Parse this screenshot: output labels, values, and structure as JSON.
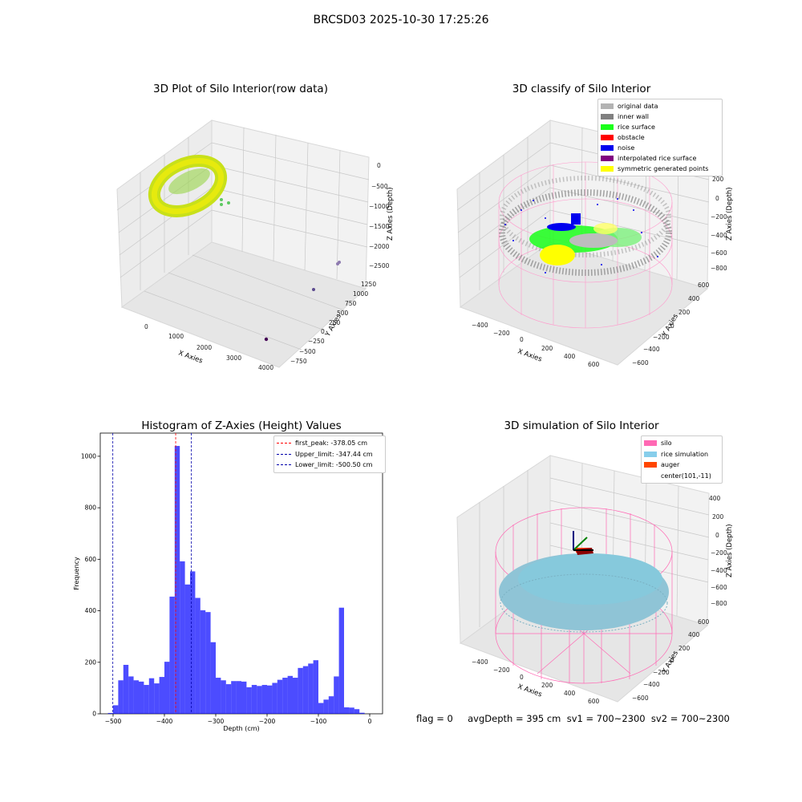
{
  "figure": {
    "title": "BRCSD03 2025-10-30 17:25:26"
  },
  "chart_data": [
    {
      "type": "scatter",
      "title": "3D Plot of Silo Interior(row data)",
      "xlabel": "X Axies",
      "ylabel": "Y Axies",
      "zlabel": "Z Axies (Depth)",
      "x_ticks": [
        "0",
        "1000",
        "2000",
        "3000",
        "4000"
      ],
      "y_ticks": [
        "1250",
        "1000",
        "750",
        "500",
        "250",
        "0",
        "−250",
        "−500",
        "−750"
      ],
      "z_ticks": [
        "0",
        "−500",
        "−1000",
        "−1500",
        "−2000",
        "−2500"
      ],
      "outliers": [
        {
          "x": 4000,
          "y": -700,
          "z": -2500,
          "color": "#440154"
        },
        {
          "x": 2800,
          "y": 800,
          "z": -2500,
          "color": "#8e7bb0"
        },
        {
          "x": 1000,
          "y": 250,
          "z": -300,
          "color": "#5ec962"
        }
      ]
    },
    {
      "type": "scatter",
      "title": "3D classify of Silo Interior",
      "xlabel": "X Axies",
      "ylabel": "Y Axies",
      "zlabel": "Z Axies (Depth)",
      "x_ticks": [
        "−400",
        "−200",
        "0",
        "200",
        "400",
        "600"
      ],
      "y_ticks": [
        "600",
        "400",
        "200",
        "0",
        "−200",
        "−400",
        "−600"
      ],
      "z_ticks": [
        "200",
        "0",
        "−200",
        "−400",
        "−600",
        "−800"
      ],
      "legend": [
        {
          "label": "original data",
          "color": "#b3b3b3"
        },
        {
          "label": "inner wall",
          "color": "#808080"
        },
        {
          "label": "rice surface",
          "color": "#1aff1a"
        },
        {
          "label": "obstacle",
          "color": "#ff0000"
        },
        {
          "label": "noise",
          "color": "#0000ee"
        },
        {
          "label": "interpolated rice surface",
          "color": "#800080"
        },
        {
          "label": "symmetric generated points",
          "color": "#ffff00"
        }
      ],
      "legend_position": "upper right"
    },
    {
      "type": "bar",
      "title": "Histogram of Z-Axies (Height) Values",
      "xlabel": "Depth (cm)",
      "ylabel": "Frequency",
      "xlim": [
        -525,
        25
      ],
      "ylim": [
        0,
        1090
      ],
      "x_ticks": [
        -500,
        -400,
        -300,
        -200,
        -100,
        0
      ],
      "x_tick_labels": [
        "−500",
        "−400",
        "−300",
        "−200",
        "−100",
        "0"
      ],
      "y_ticks": [
        0,
        200,
        400,
        600,
        800,
        1000
      ],
      "bin_width": 10,
      "bin_starts": [
        -510,
        -500,
        -490,
        -480,
        -470,
        -460,
        -450,
        -440,
        -430,
        -420,
        -410,
        -400,
        -390,
        -380,
        -370,
        -360,
        -350,
        -340,
        -330,
        -320,
        -310,
        -300,
        -290,
        -280,
        -270,
        -260,
        -250,
        -240,
        -230,
        -220,
        -210,
        -200,
        -190,
        -180,
        -170,
        -160,
        -150,
        -140,
        -130,
        -120,
        -110,
        -100,
        -90,
        -80,
        -70,
        -60,
        -50,
        -40,
        -30,
        -20,
        -10
      ],
      "values": [
        3,
        33,
        130,
        190,
        145,
        130,
        125,
        112,
        138,
        118,
        143,
        202,
        455,
        1040,
        592,
        502,
        553,
        450,
        402,
        395,
        278,
        140,
        130,
        115,
        127,
        127,
        125,
        103,
        112,
        108,
        112,
        110,
        120,
        132,
        140,
        147,
        140,
        178,
        185,
        195,
        208,
        42,
        55,
        68,
        145,
        412,
        25,
        24,
        18,
        4,
        0
      ],
      "bar_color": "#0000ff",
      "bar_opacity": 0.7,
      "vlines": [
        {
          "x": -378.05,
          "color": "#ff0000",
          "label": "first_peak: -378.05 cm"
        },
        {
          "x": -347.44,
          "color": "#0000aa",
          "label": "Upper_limit: -347.44 cm"
        },
        {
          "x": -500.5,
          "color": "#0000aa",
          "label": "Lower_limit: -500.50 cm"
        }
      ],
      "legend_position": "upper right"
    },
    {
      "type": "scatter",
      "title": "3D simulation of Silo Interior",
      "xlabel": "X Axies",
      "ylabel": "Y Axies",
      "zlabel": "Z Axies (Depth)",
      "x_ticks": [
        "−400",
        "−200",
        "0",
        "200",
        "400",
        "600"
      ],
      "y_ticks": [
        "600",
        "400",
        "200",
        "0",
        "−200",
        "−400",
        "−600"
      ],
      "z_ticks": [
        "400",
        "200",
        "0",
        "−200",
        "−400",
        "−600",
        "−800"
      ],
      "legend": [
        {
          "label": "silo",
          "color": "#ff69b4"
        },
        {
          "label": "rice simulation",
          "color": "#87ceeb"
        },
        {
          "label": "auger",
          "color": "#ff4500"
        },
        {
          "label": "center(101,-11)",
          "color": ""
        }
      ],
      "legend_position": "upper right"
    }
  ],
  "status": {
    "text": "flag = 0     avgDepth = 395 cm  sv1 = 700~2300  sv2 = 700~2300"
  }
}
